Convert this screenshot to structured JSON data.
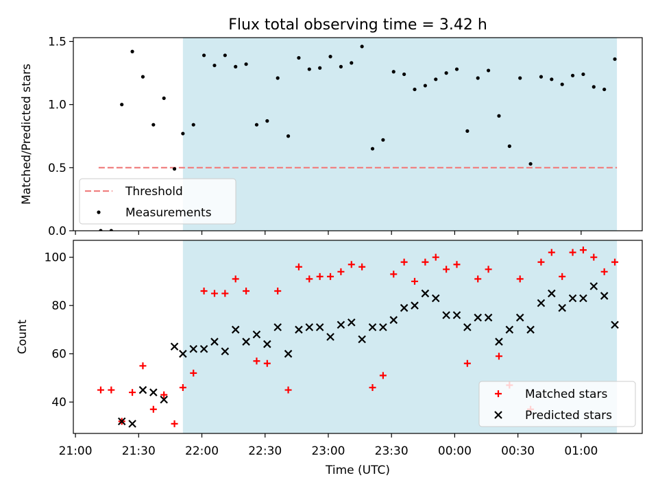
{
  "chart_data": {
    "title": "Flux total observing time = 3.42 h",
    "xlabel": "Time (UTC)",
    "x_tick_labels": [
      "21:00",
      "21:30",
      "22:00",
      "22:30",
      "23:00",
      "23:30",
      "00:00",
      "00:30",
      "01:00"
    ],
    "x_tick_values": [
      "21:00",
      "21:30",
      "22:00",
      "22:30",
      "23:00",
      "23:30",
      "00:00",
      "00:30",
      "01:00"
    ],
    "xlim": [
      "20:59",
      "01:29"
    ],
    "observing_window": {
      "start": "21:51",
      "end": "01:17",
      "color": "#add8e6"
    },
    "panels": [
      {
        "type": "scatter",
        "ylabel": "Matched/Predicted stars",
        "ylim": [
          0,
          1.53
        ],
        "y_ticks": [
          "0.0",
          "0.5",
          "1.0",
          "1.5"
        ],
        "y_tick_values": [
          0,
          0.5,
          1.0,
          1.5
        ],
        "threshold": {
          "name": "Threshold",
          "value": 0.5,
          "x_start": "21:11",
          "x_end": "01:17",
          "color": "#f08080"
        },
        "legend": {
          "placement": "lower-left",
          "entries": [
            "Threshold",
            "Measurements"
          ]
        },
        "series": [
          {
            "name": "Measurements",
            "color": "#000000",
            "marker": "dot",
            "points": [
              [
                "21:12",
                0.0
              ],
              [
                "21:17",
                0.0
              ],
              [
                "21:22",
                1.0
              ],
              [
                "21:27",
                1.42
              ],
              [
                "21:32",
                1.22
              ],
              [
                "21:37",
                0.84
              ],
              [
                "21:42",
                1.05
              ],
              [
                "21:47",
                0.49
              ],
              [
                "21:51",
                0.77
              ],
              [
                "21:56",
                0.84
              ],
              [
                "22:01",
                1.39
              ],
              [
                "22:06",
                1.31
              ],
              [
                "22:11",
                1.39
              ],
              [
                "22:16",
                1.3
              ],
              [
                "22:21",
                1.32
              ],
              [
                "22:26",
                0.84
              ],
              [
                "22:31",
                0.87
              ],
              [
                "22:36",
                1.21
              ],
              [
                "22:41",
                0.75
              ],
              [
                "22:46",
                1.37
              ],
              [
                "22:51",
                1.28
              ],
              [
                "22:56",
                1.29
              ],
              [
                "23:01",
                1.38
              ],
              [
                "23:06",
                1.3
              ],
              [
                "23:11",
                1.33
              ],
              [
                "23:16",
                1.46
              ],
              [
                "23:21",
                0.65
              ],
              [
                "23:26",
                0.72
              ],
              [
                "23:31",
                1.26
              ],
              [
                "23:36",
                1.24
              ],
              [
                "23:41",
                1.12
              ],
              [
                "23:46",
                1.15
              ],
              [
                "23:51",
                1.2
              ],
              [
                "23:56",
                1.25
              ],
              [
                "00:01",
                1.28
              ],
              [
                "00:06",
                0.79
              ],
              [
                "00:11",
                1.21
              ],
              [
                "00:16",
                1.27
              ],
              [
                "00:21",
                0.91
              ],
              [
                "00:26",
                0.67
              ],
              [
                "00:31",
                1.21
              ],
              [
                "00:36",
                0.53
              ],
              [
                "00:41",
                1.22
              ],
              [
                "00:46",
                1.2
              ],
              [
                "00:51",
                1.16
              ],
              [
                "00:56",
                1.23
              ],
              [
                "01:01",
                1.24
              ],
              [
                "01:06",
                1.14
              ],
              [
                "01:11",
                1.12
              ],
              [
                "01:16",
                1.36
              ]
            ]
          }
        ]
      },
      {
        "type": "scatter",
        "ylabel": "Count",
        "ylim": [
          27,
          107
        ],
        "y_ticks": [
          "40",
          "60",
          "80",
          "100"
        ],
        "y_tick_values": [
          40,
          60,
          80,
          100
        ],
        "legend": {
          "placement": "lower-right",
          "entries": [
            "Matched stars",
            "Predicted stars"
          ]
        },
        "series": [
          {
            "name": "Matched stars",
            "color": "#ff0000",
            "marker": "plus",
            "points": [
              [
                "21:12",
                45
              ],
              [
                "21:17",
                45
              ],
              [
                "21:22",
                32
              ],
              [
                "21:27",
                44
              ],
              [
                "21:32",
                55
              ],
              [
                "21:37",
                37
              ],
              [
                "21:42",
                43
              ],
              [
                "21:47",
                31
              ],
              [
                "21:51",
                46
              ],
              [
                "21:56",
                52
              ],
              [
                "22:01",
                86
              ],
              [
                "22:06",
                85
              ],
              [
                "22:11",
                85
              ],
              [
                "22:16",
                91
              ],
              [
                "22:21",
                86
              ],
              [
                "22:26",
                57
              ],
              [
                "22:31",
                56
              ],
              [
                "22:36",
                86
              ],
              [
                "22:41",
                45
              ],
              [
                "22:46",
                96
              ],
              [
                "22:51",
                91
              ],
              [
                "22:56",
                92
              ],
              [
                "23:01",
                92
              ],
              [
                "23:06",
                94
              ],
              [
                "23:11",
                97
              ],
              [
                "23:16",
                96
              ],
              [
                "23:21",
                46
              ],
              [
                "23:26",
                51
              ],
              [
                "23:31",
                93
              ],
              [
                "23:36",
                98
              ],
              [
                "23:41",
                90
              ],
              [
                "23:46",
                98
              ],
              [
                "23:51",
                100
              ],
              [
                "23:56",
                95
              ],
              [
                "00:01",
                97
              ],
              [
                "00:06",
                56
              ],
              [
                "00:11",
                91
              ],
              [
                "00:16",
                95
              ],
              [
                "00:21",
                59
              ],
              [
                "00:26",
                47
              ],
              [
                "00:31",
                91
              ],
              [
                "00:36",
                37
              ],
              [
                "00:41",
                98
              ],
              [
                "00:46",
                102
              ],
              [
                "00:51",
                92
              ],
              [
                "00:56",
                102
              ],
              [
                "01:01",
                103
              ],
              [
                "01:06",
                100
              ],
              [
                "01:11",
                94
              ],
              [
                "01:16",
                98
              ]
            ]
          },
          {
            "name": "Predicted stars",
            "color": "#000000",
            "marker": "x",
            "points": [
              [
                "21:22",
                32
              ],
              [
                "21:27",
                31
              ],
              [
                "21:32",
                45
              ],
              [
                "21:37",
                44
              ],
              [
                "21:42",
                41
              ],
              [
                "21:47",
                63
              ],
              [
                "21:51",
                60
              ],
              [
                "21:56",
                62
              ],
              [
                "22:01",
                62
              ],
              [
                "22:06",
                65
              ],
              [
                "22:11",
                61
              ],
              [
                "22:16",
                70
              ],
              [
                "22:21",
                65
              ],
              [
                "22:26",
                68
              ],
              [
                "22:31",
                64
              ],
              [
                "22:36",
                71
              ],
              [
                "22:41",
                60
              ],
              [
                "22:46",
                70
              ],
              [
                "22:51",
                71
              ],
              [
                "22:56",
                71
              ],
              [
                "23:01",
                67
              ],
              [
                "23:06",
                72
              ],
              [
                "23:11",
                73
              ],
              [
                "23:16",
                66
              ],
              [
                "23:21",
                71
              ],
              [
                "23:26",
                71
              ],
              [
                "23:31",
                74
              ],
              [
                "23:36",
                79
              ],
              [
                "23:41",
                80
              ],
              [
                "23:46",
                85
              ],
              [
                "23:51",
                83
              ],
              [
                "23:56",
                76
              ],
              [
                "00:01",
                76
              ],
              [
                "00:06",
                71
              ],
              [
                "00:11",
                75
              ],
              [
                "00:16",
                75
              ],
              [
                "00:21",
                65
              ],
              [
                "00:26",
                70
              ],
              [
                "00:31",
                75
              ],
              [
                "00:36",
                70
              ],
              [
                "00:41",
                81
              ],
              [
                "00:46",
                85
              ],
              [
                "00:51",
                79
              ],
              [
                "00:56",
                83
              ],
              [
                "01:01",
                83
              ],
              [
                "01:06",
                88
              ],
              [
                "01:11",
                84
              ],
              [
                "01:16",
                72
              ]
            ]
          }
        ]
      }
    ]
  }
}
